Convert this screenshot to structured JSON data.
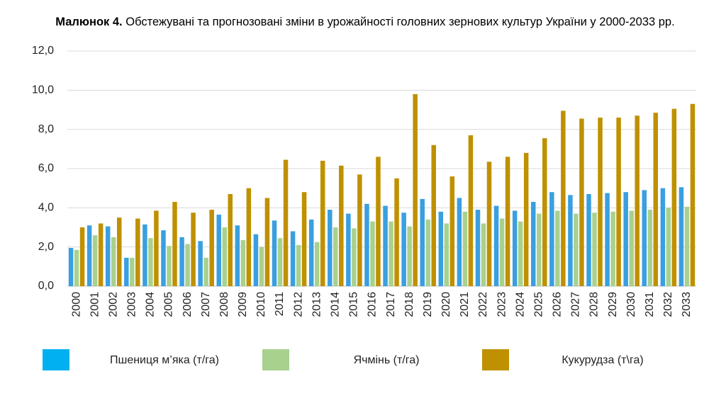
{
  "chart_data": {
    "type": "bar",
    "title_label": "Малюнок 4.",
    "title": "Обстежувані та прогнозовані зміни в урожайності головних зернових культур України у 2000-2033 рр.",
    "categories": [
      "2000",
      "2001",
      "2002",
      "2003",
      "2004",
      "2005",
      "2006",
      "2007",
      "2008",
      "2009",
      "2010",
      "2011",
      "2012",
      "2013",
      "2014",
      "2015",
      "2016",
      "2017",
      "2018",
      "2019",
      "2020",
      "2021",
      "2022",
      "2023",
      "2024",
      "2025",
      "2026",
      "2027",
      "2028",
      "2029",
      "2030",
      "2031",
      "2032",
      "2033"
    ],
    "series": [
      {
        "name": "Пшениця м’яка (т/га)",
        "color": "#3a9fe0",
        "legend_color": "#00b0f0",
        "values": [
          1.95,
          3.1,
          3.05,
          1.45,
          3.15,
          2.85,
          2.5,
          2.3,
          3.65,
          3.1,
          2.65,
          3.35,
          2.8,
          3.4,
          3.9,
          3.7,
          4.2,
          4.1,
          3.75,
          4.45,
          3.8,
          4.5,
          3.9,
          4.1,
          3.85,
          4.3,
          4.8,
          4.65,
          4.7,
          4.75,
          4.8,
          4.9,
          5.0,
          5.05
        ]
      },
      {
        "name": "Ячмінь (т/га)",
        "color": "#a9d18e",
        "legend_color": "#a9d18e",
        "values": [
          1.85,
          2.6,
          2.5,
          1.45,
          2.45,
          2.05,
          2.15,
          1.45,
          3.0,
          2.35,
          2.0,
          2.45,
          2.1,
          2.25,
          3.0,
          2.95,
          3.3,
          3.3,
          3.05,
          3.4,
          3.2,
          3.8,
          3.2,
          3.45,
          3.3,
          3.7,
          3.85,
          3.7,
          3.75,
          3.8,
          3.85,
          3.9,
          4.0,
          4.05
        ]
      },
      {
        "name": "Кукурудза (т\\га)",
        "color": "#bf9000",
        "legend_color": "#bf9000",
        "values": [
          3.0,
          3.2,
          3.5,
          3.45,
          3.85,
          4.3,
          3.75,
          3.9,
          4.7,
          5.0,
          4.5,
          6.45,
          4.8,
          6.4,
          6.15,
          5.7,
          6.6,
          5.5,
          9.8,
          7.2,
          5.6,
          7.7,
          6.35,
          6.6,
          6.8,
          7.55,
          8.95,
          8.55,
          8.6,
          8.6,
          8.7,
          8.85,
          9.05,
          9.3
        ]
      }
    ],
    "ylim": [
      0,
      12
    ],
    "yticks": [
      {
        "value": 0,
        "label": "0,0"
      },
      {
        "value": 2,
        "label": "2,0"
      },
      {
        "value": 4,
        "label": "4,0"
      },
      {
        "value": 6,
        "label": "6,0"
      },
      {
        "value": 8,
        "label": "8,0"
      },
      {
        "value": 10,
        "label": "10,0"
      },
      {
        "value": 12,
        "label": "12,0"
      }
    ],
    "grid": true,
    "legend": "bottom"
  }
}
